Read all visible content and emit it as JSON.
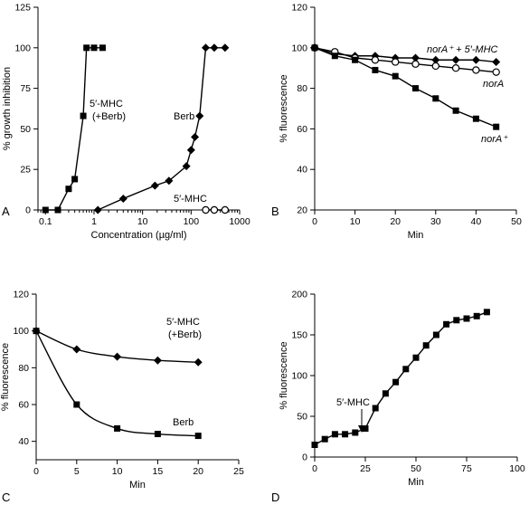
{
  "chart_data": [
    {
      "panel_label": "A",
      "type": "line",
      "xlabel": "Concentration (µg/ml)",
      "ylabel": "% growth inhibition",
      "x_scale": "log",
      "xlim": [
        0.07,
        1000
      ],
      "ylim": [
        0,
        125
      ],
      "x_ticks": [
        0.1,
        1,
        10,
        100,
        1000
      ],
      "x_tick_labels": [
        "0.1",
        "1",
        "10",
        "100",
        "1000"
      ],
      "y_ticks": [
        0,
        25,
        50,
        75,
        100,
        125
      ],
      "y_tick_labels": [
        "0",
        "25",
        "50",
        "75",
        "100",
        "125"
      ],
      "series": [
        {
          "marker": "square",
          "x": [
            0.1,
            0.18,
            0.3,
            0.4,
            0.6,
            0.7,
            1.0,
            1.5
          ],
          "y": [
            0,
            0,
            13,
            19,
            58,
            100,
            100,
            100
          ]
        },
        {
          "marker": "diamond",
          "x": [
            1.2,
            4,
            18,
            35,
            80,
            100,
            120,
            150,
            200,
            300,
            500
          ],
          "y": [
            0,
            7,
            15,
            18,
            27,
            37,
            45,
            58,
            100,
            100,
            100
          ]
        },
        {
          "marker": "circle-open",
          "x": [
            200,
            300,
            500
          ],
          "y": [
            0,
            0,
            0
          ]
        }
      ],
      "annotations": [
        "5′-MHC",
        "(+Berb)",
        "Berb",
        "5′-MHC"
      ]
    },
    {
      "panel_label": "B",
      "type": "line",
      "xlabel": "Min",
      "ylabel": "% fluorescence",
      "xlim": [
        0,
        50
      ],
      "ylim": [
        20,
        120
      ],
      "x_ticks": [
        0,
        10,
        20,
        30,
        40,
        50
      ],
      "x_tick_labels": [
        "0",
        "10",
        "20",
        "30",
        "40",
        "50"
      ],
      "y_ticks": [
        20,
        40,
        60,
        80,
        100,
        120
      ],
      "y_tick_labels": [
        "20",
        "40",
        "60",
        "80",
        "100",
        "120"
      ],
      "series": [
        {
          "name": "norA⁺ + 5′-MHC",
          "marker": "diamond",
          "x": [
            0,
            5,
            10,
            15,
            20,
            25,
            30,
            35,
            40,
            45
          ],
          "y": [
            100,
            97,
            96,
            96,
            95,
            95,
            94,
            94,
            94,
            93
          ]
        },
        {
          "name": "norA",
          "marker": "circle-open",
          "x": [
            0,
            5,
            10,
            15,
            20,
            25,
            30,
            35,
            40,
            45
          ],
          "y": [
            100,
            98,
            95,
            94,
            93,
            92,
            91,
            90,
            89,
            88
          ]
        },
        {
          "name": "norA⁺",
          "marker": "square",
          "x": [
            0,
            5,
            10,
            15,
            20,
            25,
            30,
            35,
            40,
            45
          ],
          "y": [
            100,
            96,
            94,
            89,
            86,
            80,
            75,
            69,
            65,
            61
          ]
        }
      ]
    },
    {
      "panel_label": "C",
      "type": "line",
      "xlabel": "Min",
      "ylabel": "% fluorescence",
      "xlim": [
        0,
        25
      ],
      "ylim": [
        30,
        120
      ],
      "x_ticks": [
        0,
        5,
        10,
        15,
        20,
        25
      ],
      "x_tick_labels": [
        "0",
        "5",
        "10",
        "15",
        "20",
        "25"
      ],
      "y_ticks": [
        40,
        60,
        80,
        100,
        120
      ],
      "y_tick_labels": [
        "40",
        "60",
        "80",
        "100",
        "120"
      ],
      "series": [
        {
          "name": "5′-MHC (+Berb)",
          "marker": "diamond",
          "x": [
            0,
            5,
            10,
            15,
            20
          ],
          "y": [
            100,
            90,
            86,
            84,
            83
          ]
        },
        {
          "name": "Berb",
          "marker": "square",
          "x": [
            0,
            5,
            10,
            15,
            20
          ],
          "y": [
            100,
            60,
            47,
            44,
            43
          ]
        }
      ],
      "annotations": [
        "5′-MHC",
        "(+Berb)",
        "Berb"
      ]
    },
    {
      "panel_label": "D",
      "type": "line",
      "xlabel": "Min",
      "ylabel": "% fluorescence",
      "xlim": [
        0,
        100
      ],
      "ylim": [
        0,
        200
      ],
      "x_ticks": [
        0,
        25,
        50,
        75,
        100
      ],
      "x_tick_labels": [
        "0",
        "25",
        "50",
        "75",
        "100"
      ],
      "y_ticks": [
        0,
        50,
        100,
        150,
        200
      ],
      "y_tick_labels": [
        "0",
        "50",
        "100",
        "150",
        "200"
      ],
      "series": [
        {
          "marker": "square",
          "x": [
            0,
            5,
            10,
            15,
            20,
            25,
            30,
            35,
            40,
            45,
            50,
            55,
            60,
            65,
            70,
            75,
            80,
            85
          ],
          "y": [
            15,
            22,
            28,
            28,
            30,
            35,
            60,
            78,
            92,
            108,
            122,
            137,
            150,
            163,
            168,
            170,
            173,
            178
          ]
        }
      ],
      "annotations": [
        "5′-MHC"
      ]
    }
  ]
}
